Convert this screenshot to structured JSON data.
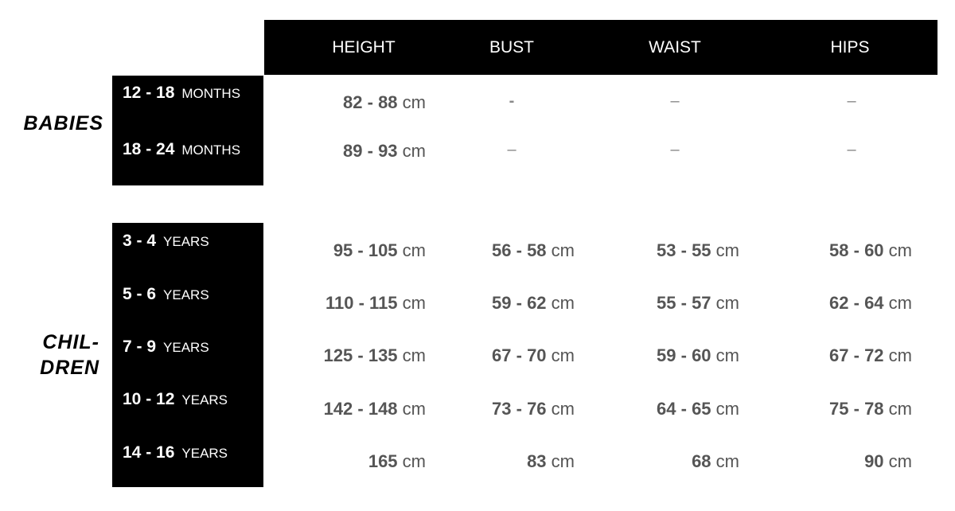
{
  "columns": [
    "HEIGHT",
    "BUST",
    "WAIST",
    "HIPS"
  ],
  "groups": [
    {
      "label": "BABIES",
      "rows": [
        {
          "range": "12 - 18",
          "unit": "MONTHS",
          "height": "82 - 88",
          "bust": "-",
          "waist": "–",
          "hips": "–"
        },
        {
          "range": "18 - 24",
          "unit": "MONTHS",
          "height": "89 - 93",
          "bust": "–",
          "waist": "–",
          "hips": "–"
        }
      ]
    },
    {
      "label_line1": "CHIL-",
      "label_line2": "DREN",
      "rows": [
        {
          "range": "3 - 4",
          "unit": "YEARS",
          "height": "95 - 105",
          "bust": "56 - 58",
          "waist": "53 - 55",
          "hips": "58 - 60"
        },
        {
          "range": "5 - 6",
          "unit": "YEARS",
          "height": "110 - 115",
          "bust": "59 - 62",
          "waist": "55 - 57",
          "hips": "62 - 64"
        },
        {
          "range": "7 - 9",
          "unit": "YEARS",
          "height": "125 - 135",
          "bust": "67 - 70",
          "waist": "59 - 60",
          "hips": "67 - 72"
        },
        {
          "range": "10 - 12",
          "unit": "YEARS",
          "height": "142 - 148",
          "bust": "73 - 76",
          "waist": "64 - 65",
          "hips": "75 - 78"
        },
        {
          "range": "14 - 16",
          "unit": "YEARS",
          "height": "165",
          "bust": "83",
          "waist": "68",
          "hips": "90"
        }
      ]
    }
  ],
  "unit": "cm"
}
